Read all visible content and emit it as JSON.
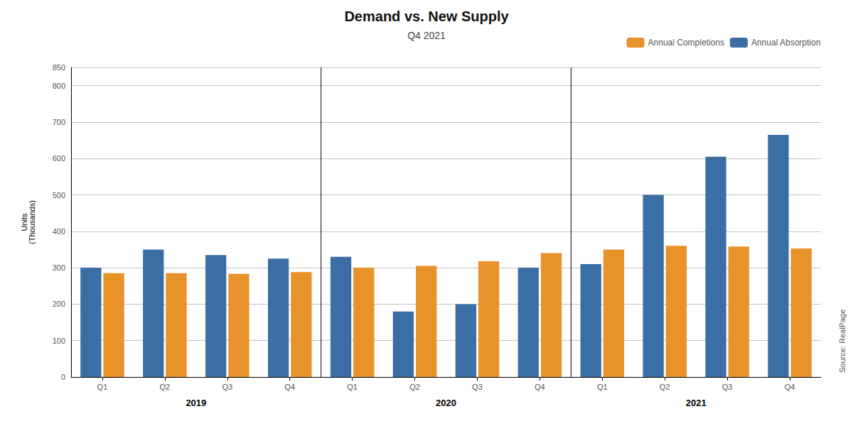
{
  "chart_data": {
    "type": "bar",
    "title": "Demand vs. New Supply",
    "subtitle": "Q4 2021",
    "y_label": "Units\n(Thousands)",
    "source": "Source: RealPage",
    "annotations": [
      "2019",
      "2020",
      "2021"
    ],
    "categories": [
      "Q1",
      "Q2",
      "Q3",
      "Q4",
      "Q1",
      "Q2",
      "Q3",
      "Q4",
      "Q1",
      "Q2",
      "Q3",
      "Q4"
    ],
    "series": [
      {
        "name": "Annual Absorption",
        "color": "#3B6EA5",
        "values": [
          300,
          350,
          335,
          325,
          330,
          180,
          200,
          300,
          310,
          500,
          605,
          665
        ]
      },
      {
        "name": "Annual Completions",
        "color": "#E8922A",
        "values": [
          285,
          285,
          283,
          288,
          300,
          305,
          318,
          340,
          350,
          360,
          358,
          353
        ]
      }
    ],
    "ylim": [
      0,
      850
    ],
    "yticks": [
      0,
      100,
      200,
      300,
      400,
      500,
      600,
      700,
      800
    ],
    "grid": true,
    "legend": "upper right"
  }
}
